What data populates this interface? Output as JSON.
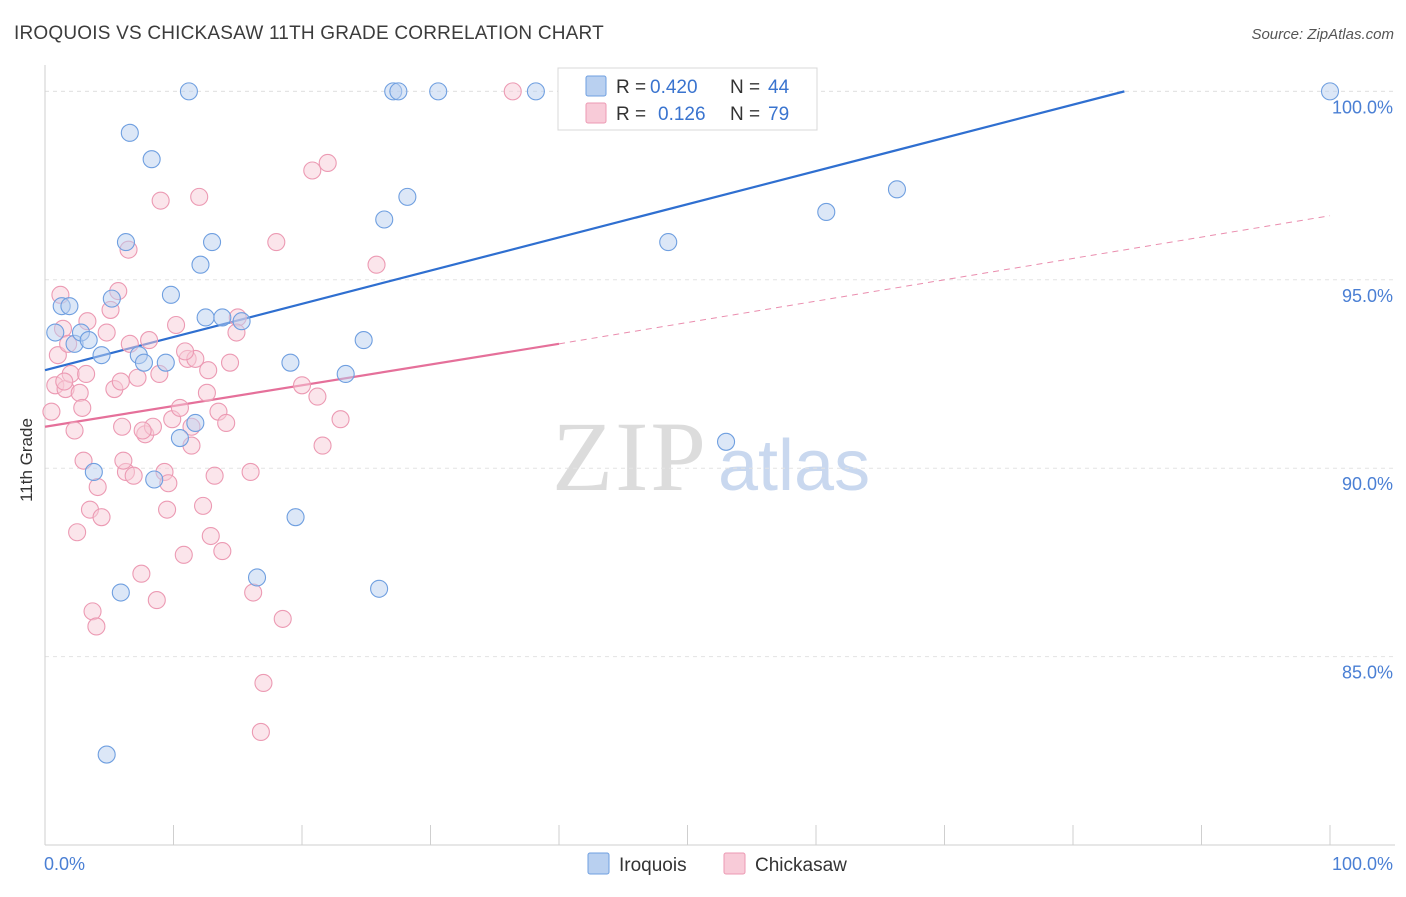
{
  "chart_data": {
    "type": "scatter",
    "title": "IROQUOIS VS CHICKASAW 11TH GRADE CORRELATION CHART",
    "source": "Source: ZipAtlas.com",
    "ylabel": "11th Grade",
    "xlabel": "",
    "xlim": [
      0,
      100
    ],
    "ylim": [
      80,
      100.7
    ],
    "x_tick_labels": [
      {
        "value": 0,
        "label": "0.0%"
      },
      {
        "value": 100,
        "label": "100.0%"
      }
    ],
    "y_tick_labels": [
      {
        "value": 85,
        "label": "85.0%"
      },
      {
        "value": 90,
        "label": "90.0%"
      },
      {
        "value": 95,
        "label": "95.0%"
      },
      {
        "value": 100,
        "label": "100.0%"
      }
    ],
    "grid": true,
    "legend_placement": "top-center",
    "watermark": {
      "zip": "ZIP",
      "atlas": "atlas"
    },
    "series": [
      {
        "name": "Iroquois",
        "color": "#6f9fe0",
        "fill": "#b9d0f0",
        "line_color": "#2f6fd0",
        "stats": {
          "r_label": "R =",
          "r_value": "0.420",
          "n_label": "N =",
          "n_value": "44"
        },
        "trend": {
          "x0": 0,
          "y0": 92.6,
          "x1": 84,
          "y1": 100
        },
        "points": [
          [
            0.8,
            93.6
          ],
          [
            1.3,
            94.3
          ],
          [
            1.9,
            94.3
          ],
          [
            2.3,
            93.3
          ],
          [
            2.8,
            93.6
          ],
          [
            3.4,
            93.4
          ],
          [
            3.8,
            89.9
          ],
          [
            4.4,
            93.0
          ],
          [
            5.2,
            94.5
          ],
          [
            5.9,
            86.7
          ],
          [
            6.3,
            96.0
          ],
          [
            6.6,
            98.9
          ],
          [
            7.3,
            93.0
          ],
          [
            7.7,
            92.8
          ],
          [
            8.3,
            98.2
          ],
          [
            8.5,
            89.7
          ],
          [
            9.4,
            92.8
          ],
          [
            9.8,
            94.6
          ],
          [
            10.5,
            90.8
          ],
          [
            11.2,
            100.0
          ],
          [
            11.7,
            91.2
          ],
          [
            12.1,
            95.4
          ],
          [
            12.5,
            94.0
          ],
          [
            13.0,
            96.0
          ],
          [
            13.8,
            94.0
          ],
          [
            15.3,
            93.9
          ],
          [
            16.5,
            87.1
          ],
          [
            19.1,
            92.8
          ],
          [
            19.5,
            88.7
          ],
          [
            23.4,
            92.5
          ],
          [
            24.8,
            93.4
          ],
          [
            26.0,
            86.8
          ],
          [
            26.4,
            96.6
          ],
          [
            27.1,
            100.0
          ],
          [
            27.5,
            100.0
          ],
          [
            28.2,
            97.2
          ],
          [
            30.6,
            100.0
          ],
          [
            38.2,
            100.0
          ],
          [
            48.5,
            96.0
          ],
          [
            53.0,
            90.7
          ],
          [
            60.8,
            96.8
          ],
          [
            66.3,
            97.4
          ],
          [
            100.0,
            100.0
          ],
          [
            4.8,
            82.4
          ]
        ]
      },
      {
        "name": "Chickasaw",
        "color": "#ec9ab3",
        "fill": "#f8cbd8",
        "line_color": "#e5709a",
        "stats": {
          "r_label": "R =",
          "r_value": "0.126",
          "n_label": "N =",
          "n_value": "79"
        },
        "trend": {
          "x0": 0,
          "y0": 91.1,
          "x1": 40,
          "y1": 93.3,
          "dash_x1": 100,
          "dash_y1": 96.7
        },
        "points": [
          [
            0.5,
            91.5
          ],
          [
            0.8,
            92.2
          ],
          [
            1.0,
            93.0
          ],
          [
            1.2,
            94.6
          ],
          [
            1.4,
            93.7
          ],
          [
            1.6,
            92.1
          ],
          [
            1.8,
            93.3
          ],
          [
            2.0,
            92.5
          ],
          [
            2.3,
            91.0
          ],
          [
            2.7,
            92.0
          ],
          [
            3.0,
            90.2
          ],
          [
            3.2,
            92.5
          ],
          [
            3.5,
            88.9
          ],
          [
            3.7,
            86.2
          ],
          [
            4.0,
            85.8
          ],
          [
            4.4,
            88.7
          ],
          [
            4.8,
            93.6
          ],
          [
            5.1,
            94.2
          ],
          [
            5.4,
            92.1
          ],
          [
            5.7,
            94.7
          ],
          [
            6.0,
            91.1
          ],
          [
            6.3,
            89.9
          ],
          [
            6.6,
            93.3
          ],
          [
            6.9,
            89.8
          ],
          [
            7.2,
            92.4
          ],
          [
            7.5,
            87.2
          ],
          [
            7.8,
            90.9
          ],
          [
            8.1,
            93.4
          ],
          [
            8.4,
            91.1
          ],
          [
            8.7,
            86.5
          ],
          [
            9.0,
            97.1
          ],
          [
            9.3,
            89.9
          ],
          [
            9.6,
            89.6
          ],
          [
            9.9,
            91.3
          ],
          [
            10.2,
            93.8
          ],
          [
            10.5,
            91.6
          ],
          [
            10.8,
            87.7
          ],
          [
            11.1,
            92.9
          ],
          [
            11.4,
            90.6
          ],
          [
            11.7,
            92.9
          ],
          [
            12.0,
            97.2
          ],
          [
            12.3,
            89.0
          ],
          [
            12.6,
            92.0
          ],
          [
            12.9,
            88.2
          ],
          [
            13.2,
            89.8
          ],
          [
            13.5,
            91.5
          ],
          [
            13.8,
            87.8
          ],
          [
            14.1,
            91.2
          ],
          [
            14.4,
            92.8
          ],
          [
            15.0,
            94.0
          ],
          [
            16.0,
            89.9
          ],
          [
            16.2,
            86.7
          ],
          [
            17.0,
            84.3
          ],
          [
            18.0,
            96.0
          ],
          [
            18.5,
            86.0
          ],
          [
            20.0,
            92.2
          ],
          [
            20.8,
            97.9
          ],
          [
            21.2,
            91.9
          ],
          [
            21.6,
            90.6
          ],
          [
            22.0,
            98.1
          ],
          [
            23.0,
            91.3
          ],
          [
            25.8,
            95.4
          ],
          [
            36.4,
            100.0
          ],
          [
            16.8,
            83.0
          ],
          [
            2.5,
            88.3
          ],
          [
            9.5,
            88.9
          ],
          [
            5.9,
            92.3
          ],
          [
            7.6,
            91.0
          ],
          [
            3.3,
            93.9
          ],
          [
            11.4,
            91.1
          ],
          [
            4.1,
            89.5
          ],
          [
            8.9,
            92.5
          ],
          [
            6.5,
            95.8
          ],
          [
            1.5,
            92.3
          ],
          [
            2.9,
            91.6
          ],
          [
            10.9,
            93.1
          ],
          [
            6.1,
            90.2
          ],
          [
            12.7,
            92.6
          ],
          [
            14.9,
            93.6
          ]
        ]
      }
    ]
  }
}
